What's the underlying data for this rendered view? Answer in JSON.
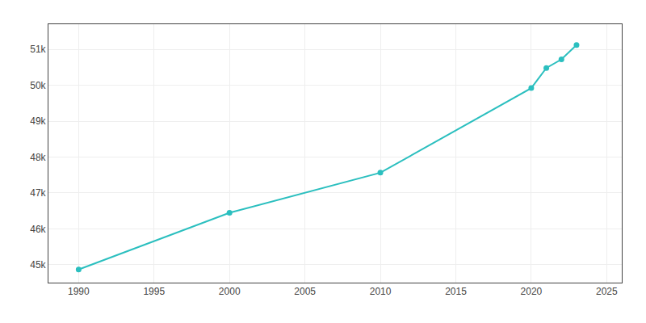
{
  "chart_data": {
    "type": "line",
    "x": [
      1990,
      2000,
      2010,
      2020,
      2021,
      2022,
      2023
    ],
    "values": [
      44866,
      46445,
      47563,
      49920,
      50480,
      50720,
      51120
    ],
    "color": "#2bbfbf",
    "marker": "circle",
    "xlim": [
      1988,
      2026
    ],
    "ylim": [
      44500,
      51700
    ],
    "xticks": [
      1990,
      1995,
      2000,
      2005,
      2010,
      2015,
      2020,
      2025
    ],
    "yticks": [
      {
        "value": 45000,
        "label": "45k"
      },
      {
        "value": 46000,
        "label": "46k"
      },
      {
        "value": 47000,
        "label": "47k"
      },
      {
        "value": 48000,
        "label": "48k"
      },
      {
        "value": 49000,
        "label": "49k"
      },
      {
        "value": 50000,
        "label": "50k"
      },
      {
        "value": 51000,
        "label": "51k"
      }
    ],
    "grid": true
  }
}
